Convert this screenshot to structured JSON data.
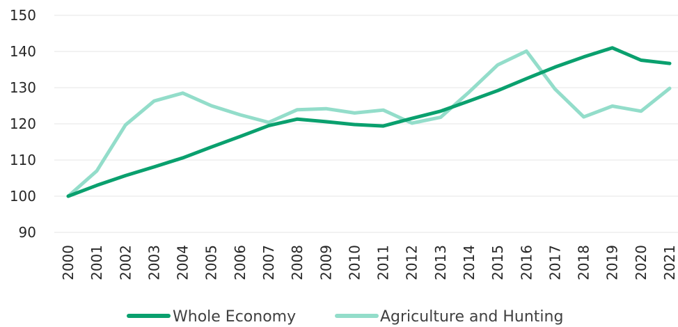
{
  "chart_data": {
    "type": "line",
    "title": "",
    "xlabel": "",
    "ylabel": "",
    "categories": [
      "2000",
      "2001",
      "2002",
      "2003",
      "2004",
      "2005",
      "2006",
      "2007",
      "2008",
      "2009",
      "2010",
      "2011",
      "2012",
      "2013",
      "2014",
      "2015",
      "2016",
      "2017",
      "2018",
      "2019",
      "2020",
      "2021"
    ],
    "ylim": [
      90,
      150
    ],
    "yticks": [
      90,
      100,
      110,
      120,
      130,
      140,
      150
    ],
    "grid": true,
    "legend_position": "bottom",
    "series": [
      {
        "name": "Whole Economy",
        "color": "#0aa06e",
        "values": [
          100,
          103,
          105.7,
          108.1,
          110.6,
          113.6,
          116.5,
          119.5,
          121.3,
          120.6,
          119.8,
          119.4,
          121.5,
          123.5,
          126.3,
          129.2,
          132.5,
          135.7,
          138.5,
          141.0,
          137.6,
          136.7
        ]
      },
      {
        "name": "Agriculture and Hunting",
        "color": "#93ddca",
        "values": [
          100,
          107,
          119.7,
          126.3,
          128.5,
          125.0,
          122.5,
          120.4,
          123.9,
          124.2,
          123.0,
          123.8,
          120.2,
          121.8,
          128.8,
          136.3,
          140.1,
          129.6,
          121.9,
          124.9,
          123.5,
          129.8
        ]
      }
    ]
  }
}
